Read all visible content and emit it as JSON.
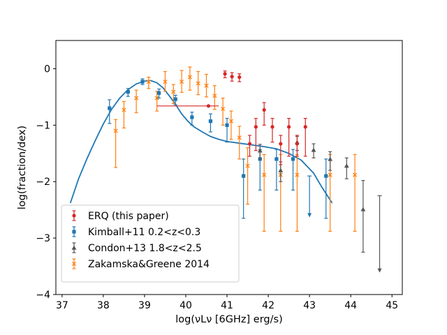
{
  "chart_data": {
    "type": "scatter",
    "title": "",
    "xlabel": "log(νLν [6GHz] erg/s)",
    "ylabel": "log(fraction/dex)",
    "xlim": [
      36.85,
      45.25
    ],
    "ylim": [
      -4.0,
      0.5
    ],
    "xticks": [
      37,
      38,
      39,
      40,
      41,
      42,
      43,
      44,
      45
    ],
    "yticks": [
      0,
      -1,
      -2,
      -3,
      -4
    ],
    "xtick_labels": [
      "37",
      "38",
      "39",
      "40",
      "41",
      "42",
      "43",
      "44",
      "45"
    ],
    "ytick_labels": [
      "0",
      "−1",
      "−2",
      "−3",
      "−4"
    ],
    "grid": false,
    "legend_position": "lower-left",
    "series": [
      {
        "name": "ERQ (this paper)",
        "color": "#d62728",
        "marker": "circle",
        "points": [
          {
            "x": 40.55,
            "y": -0.66,
            "ylo": -0.66,
            "yhi": -0.66,
            "xlo": 39.3,
            "xhi": 40.8
          },
          {
            "x": 40.95,
            "y": -0.09,
            "ylo": -0.16,
            "yhi": -0.04
          },
          {
            "x": 41.12,
            "y": -0.14,
            "ylo": -0.22,
            "yhi": -0.07
          },
          {
            "x": 41.3,
            "y": -0.15,
            "ylo": -0.23,
            "yhi": -0.09
          },
          {
            "x": 41.55,
            "y": -1.33,
            "ylo": -1.55,
            "yhi": -1.18
          },
          {
            "x": 41.7,
            "y": -1.03,
            "ylo": -1.45,
            "yhi": -0.88
          },
          {
            "x": 41.9,
            "y": -0.73,
            "ylo": -1.0,
            "yhi": -0.6
          },
          {
            "x": 42.1,
            "y": -1.03,
            "ylo": -1.3,
            "yhi": -0.88
          },
          {
            "x": 42.3,
            "y": -1.33,
            "ylo": -1.7,
            "yhi": -1.18
          },
          {
            "x": 42.5,
            "y": -1.03,
            "ylo": -1.55,
            "yhi": -0.88
          },
          {
            "x": 42.7,
            "y": -1.33,
            "ylo": -1.55,
            "yhi": -1.18
          },
          {
            "x": 42.9,
            "y": -1.03,
            "ylo": -1.55,
            "yhi": -0.88
          }
        ]
      },
      {
        "name": "Kimball+11 0.2<z<0.3",
        "color": "#1f77b4",
        "marker": "square",
        "points": [
          {
            "x": 38.15,
            "y": -0.7,
            "ylo": -0.97,
            "yhi": -0.55
          },
          {
            "x": 38.6,
            "y": -0.41,
            "ylo": -0.49,
            "yhi": -0.35
          },
          {
            "x": 38.95,
            "y": -0.23,
            "ylo": -0.28,
            "yhi": -0.18
          },
          {
            "x": 39.35,
            "y": -0.43,
            "ylo": -0.52,
            "yhi": -0.36
          },
          {
            "x": 39.75,
            "y": -0.54,
            "ylo": -0.64,
            "yhi": -0.47
          },
          {
            "x": 40.15,
            "y": -0.86,
            "ylo": -1.0,
            "yhi": -0.77
          },
          {
            "x": 40.6,
            "y": -0.93,
            "ylo": -1.12,
            "yhi": -0.8
          },
          {
            "x": 41.0,
            "y": -1.0,
            "ylo": -1.3,
            "yhi": -0.88
          },
          {
            "x": 41.4,
            "y": -1.9,
            "ylo": -2.65,
            "yhi": -1.6
          },
          {
            "x": 41.8,
            "y": -1.6,
            "ylo": -2.15,
            "yhi": -1.43
          },
          {
            "x": 42.2,
            "y": -1.6,
            "ylo": -2.15,
            "yhi": -1.43
          },
          {
            "x": 42.6,
            "y": -1.6,
            "ylo": -2.15,
            "yhi": -1.43
          },
          {
            "x": 43.0,
            "y": -2.62,
            "ylo": -2.62,
            "yhi": -1.9,
            "upper_limit": true
          },
          {
            "x": 43.4,
            "y": -1.9,
            "ylo": -2.65,
            "yhi": -1.6
          }
        ]
      },
      {
        "name": "Condon+13 1.8<z<2.5",
        "color": "#555555",
        "marker": "triangle",
        "points": [
          {
            "x": 41.8,
            "y": -1.45,
            "ylo": -1.6,
            "yhi": -1.34
          },
          {
            "x": 42.3,
            "y": -1.8,
            "ylo": -2.0,
            "yhi": -1.65
          },
          {
            "x": 42.7,
            "y": -1.3,
            "ylo": -1.45,
            "yhi": -1.2
          },
          {
            "x": 43.1,
            "y": -1.44,
            "ylo": -1.58,
            "yhi": -1.33
          },
          {
            "x": 43.5,
            "y": -1.6,
            "ylo": -1.8,
            "yhi": -1.47
          },
          {
            "x": 43.9,
            "y": -1.72,
            "ylo": -1.95,
            "yhi": -1.58
          },
          {
            "x": 44.3,
            "y": -2.49,
            "ylo": -3.25,
            "yhi": -1.98
          },
          {
            "x": 44.7,
            "y": -3.6,
            "ylo": -3.6,
            "yhi": -2.25,
            "upper_limit": true
          }
        ]
      },
      {
        "name": "Zakamska&Greene 2014",
        "color": "#ff7f0e",
        "marker": "x",
        "points": [
          {
            "x": 38.3,
            "y": -1.1,
            "ylo": -1.75,
            "yhi": -0.9
          },
          {
            "x": 38.5,
            "y": -0.73,
            "ylo": -1.05,
            "yhi": -0.58
          },
          {
            "x": 38.8,
            "y": -0.52,
            "ylo": -0.78,
            "yhi": -0.38
          },
          {
            "x": 39.1,
            "y": -0.23,
            "ylo": -0.35,
            "yhi": -0.15
          },
          {
            "x": 39.3,
            "y": -0.52,
            "ylo": -0.75,
            "yhi": -0.4
          },
          {
            "x": 39.5,
            "y": -0.23,
            "ylo": -0.4,
            "yhi": -0.05
          },
          {
            "x": 39.7,
            "y": -0.41,
            "ylo": -0.62,
            "yhi": -0.28
          },
          {
            "x": 39.9,
            "y": -0.23,
            "ylo": -0.42,
            "yhi": -0.03
          },
          {
            "x": 40.1,
            "y": -0.15,
            "ylo": -0.38,
            "yhi": 0.03
          },
          {
            "x": 40.3,
            "y": -0.26,
            "ylo": -0.46,
            "yhi": -0.05
          },
          {
            "x": 40.5,
            "y": -0.3,
            "ylo": -0.5,
            "yhi": -0.1
          },
          {
            "x": 40.7,
            "y": -0.48,
            "ylo": -0.72,
            "yhi": -0.3
          },
          {
            "x": 40.9,
            "y": -0.71,
            "ylo": -1.0,
            "yhi": -0.52
          },
          {
            "x": 41.1,
            "y": -0.93,
            "ylo": -1.25,
            "yhi": -0.75
          },
          {
            "x": 41.3,
            "y": -1.22,
            "ylo": -1.6,
            "yhi": -1.02
          },
          {
            "x": 41.5,
            "y": -1.72,
            "ylo": -2.4,
            "yhi": -1.4
          },
          {
            "x": 41.9,
            "y": -1.88,
            "ylo": -2.88,
            "yhi": -1.52
          },
          {
            "x": 42.3,
            "y": -1.88,
            "ylo": -2.88,
            "yhi": -1.52
          },
          {
            "x": 42.7,
            "y": -1.88,
            "ylo": -2.88,
            "yhi": -1.52
          },
          {
            "x": 43.5,
            "y": -1.88,
            "ylo": -2.88,
            "yhi": -1.52
          },
          {
            "x": 44.1,
            "y": -1.88,
            "ylo": -2.88,
            "yhi": -1.52
          }
        ]
      }
    ],
    "curve": {
      "name": "model",
      "color": "#1f77b4",
      "x": [
        37.2,
        37.4,
        37.6,
        37.8,
        38.0,
        38.2,
        38.4,
        38.6,
        38.8,
        39.0,
        39.15,
        39.3,
        39.45,
        39.6,
        39.75,
        39.9,
        40.05,
        40.2,
        40.4,
        40.6,
        40.8,
        41.0,
        41.3,
        41.6,
        41.9,
        42.2,
        42.5,
        42.8,
        43.1,
        43.3,
        43.55
      ],
      "y": [
        -2.38,
        -1.95,
        -1.6,
        -1.28,
        -0.98,
        -0.72,
        -0.52,
        -0.37,
        -0.27,
        -0.22,
        -0.21,
        -0.25,
        -0.34,
        -0.48,
        -0.63,
        -0.8,
        -0.93,
        -1.03,
        -1.12,
        -1.2,
        -1.25,
        -1.29,
        -1.32,
        -1.35,
        -1.38,
        -1.42,
        -1.5,
        -1.62,
        -1.85,
        -2.1,
        -2.38
      ]
    },
    "legend": [
      {
        "label": "ERQ (this paper)",
        "color": "#d62728",
        "marker": "circle"
      },
      {
        "label": "Kimball+11 0.2<z<0.3",
        "color": "#1f77b4",
        "marker": "square"
      },
      {
        "label": "Condon+13 1.8<z<2.5",
        "color": "#555555",
        "marker": "triangle"
      },
      {
        "label": "Zakamska&Greene 2014",
        "color": "#ff7f0e",
        "marker": "x"
      }
    ]
  }
}
